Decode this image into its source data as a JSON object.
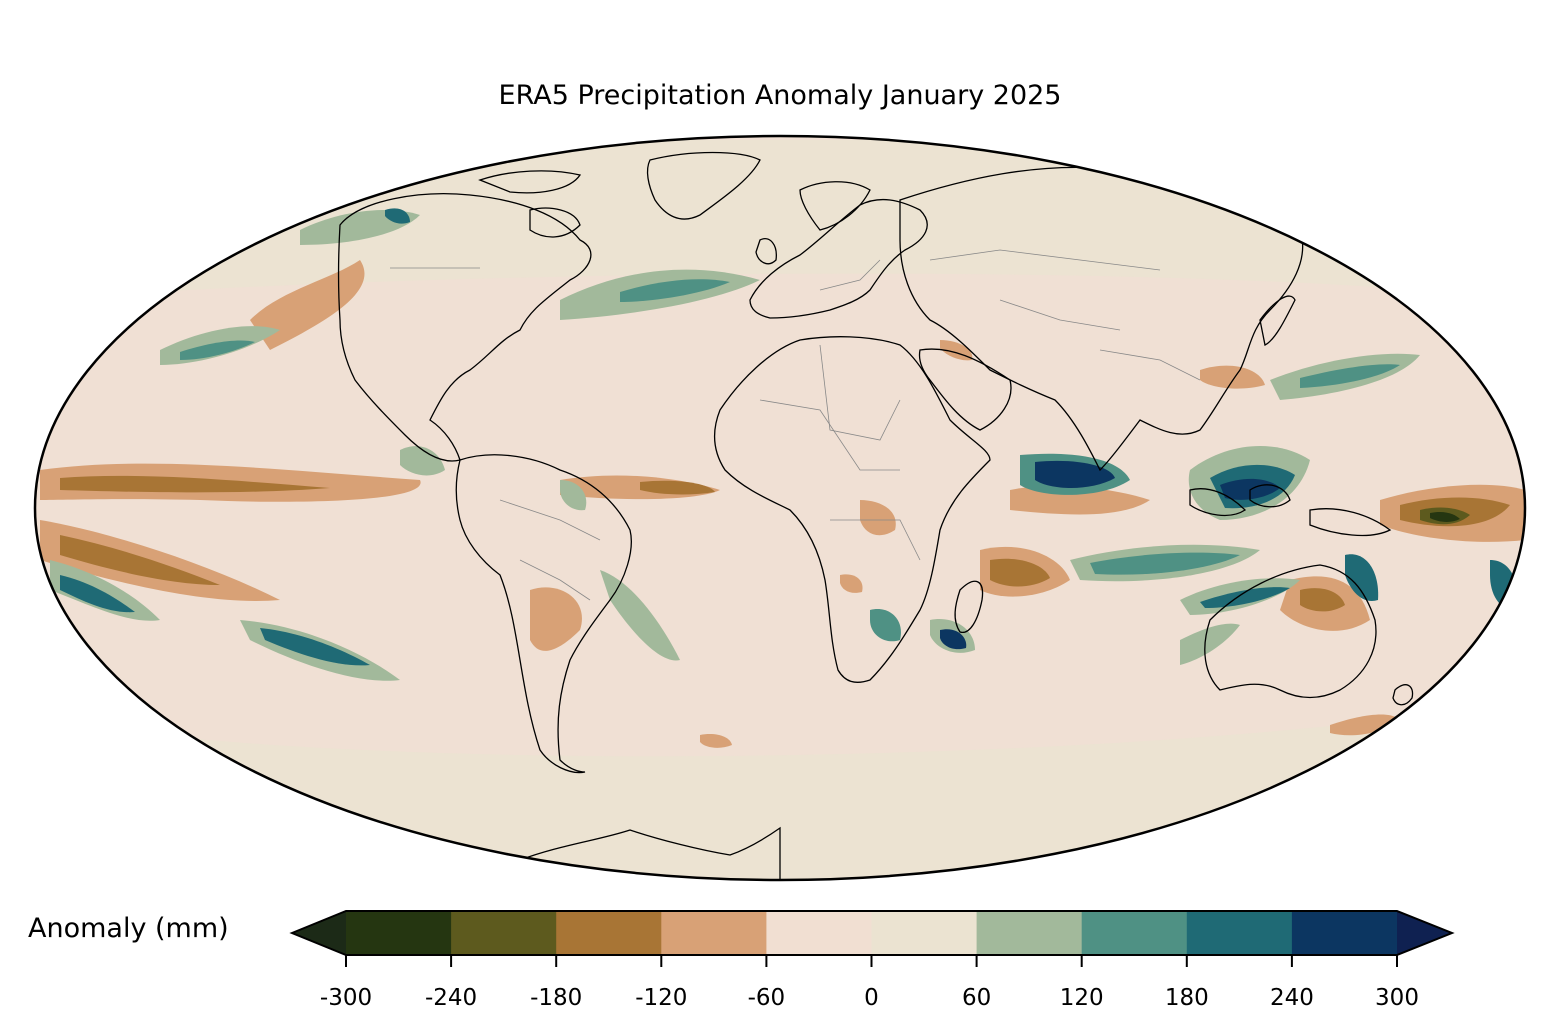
{
  "title": "ERA5 Precipitation Anomaly January 2025",
  "colorbar": {
    "label": "Anomaly (mm)",
    "ticks": [
      "-300",
      "-240",
      "-180",
      "-120",
      "-60",
      "0",
      "60",
      "120",
      "180",
      "240",
      "300"
    ],
    "colors": [
      "#253611",
      "#5d5a1e",
      "#a87535",
      "#d8a176",
      "#f1dfd2",
      "#ebe3d1",
      "#a2b99b",
      "#4f9184",
      "#1f6a75",
      "#0c3661"
    ],
    "under_color": "#1c2a17",
    "over_color": "#0f2151",
    "extend": "both"
  },
  "map": {
    "projection": "Mollweide",
    "ocean_base_color": "#f0e0d4",
    "land_base_color": "#f2e0d4",
    "coastline_color": "#000000",
    "border_color": "#888888"
  }
}
